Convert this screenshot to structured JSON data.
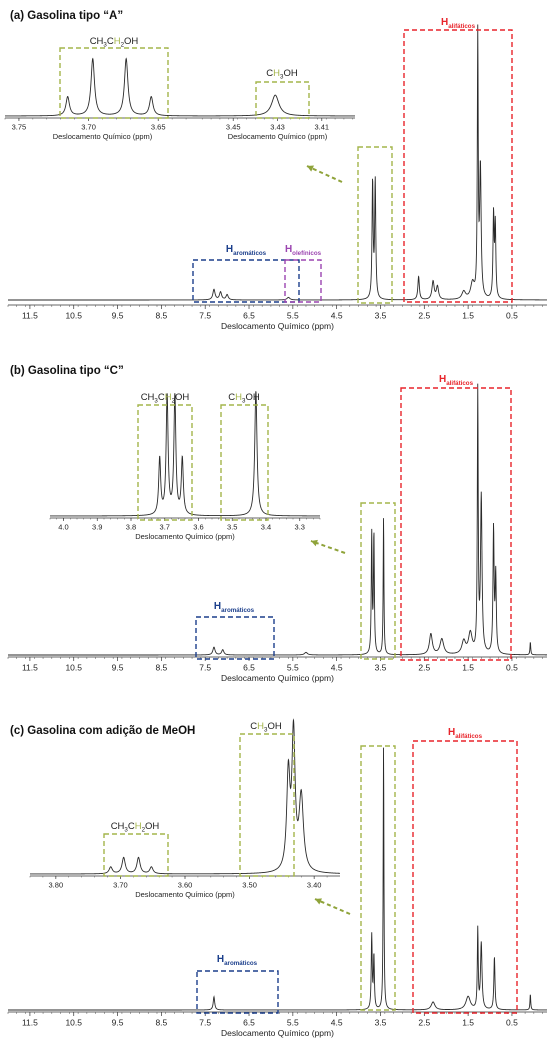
{
  "colors": {
    "spectrum": "#2a2a2a",
    "ethanol": "#a4b54b",
    "aliphatic": "#e8242b",
    "aromatic": "#1c3f8c",
    "olefinic": "#9b45b0",
    "arrow": "#8fa33a"
  },
  "chart_data": [
    {
      "type": "line",
      "title": "(a) Gasolina tipo “A”",
      "xlabel": "Deslocamento Químico (ppm)",
      "xlim": [
        12.0,
        -0.3
      ],
      "xticks": [
        11.5,
        10.5,
        9.5,
        8.5,
        7.5,
        6.5,
        5.5,
        4.5,
        3.5,
        2.5,
        1.5,
        0.5
      ],
      "xtick_labels": [
        "11.5",
        "10.5",
        "9.5",
        "8.5",
        "7.5",
        "6.5",
        "5.5",
        "4.5",
        "3.5",
        "2.5",
        "1.5",
        "0.5"
      ],
      "region_labels": {
        "aliphatic": {
          "main": "H",
          "sub": "alifáticos"
        },
        "aromatic": {
          "main": "H",
          "sub": "aromáticos"
        },
        "olefinic": {
          "main": "H",
          "sub": "olefínicos"
        }
      },
      "regions": [
        {
          "kind": "aliphatic",
          "x": [
            2.95,
            0.35
          ]
        },
        {
          "kind": "aromatic",
          "x": [
            7.95,
            6.2
          ]
        },
        {
          "kind": "olefinic",
          "x": [
            5.95,
            5.2
          ]
        },
        {
          "kind": "ethanol",
          "x": [
            3.9,
            3.1
          ]
        }
      ],
      "peaks": [
        {
          "x": 3.68,
          "h": 0.45,
          "w": 0.015
        },
        {
          "x": 3.62,
          "h": 0.45,
          "w": 0.015
        },
        {
          "x": 2.63,
          "h": 0.09,
          "w": 0.02
        },
        {
          "x": 2.3,
          "h": 0.07,
          "w": 0.03
        },
        {
          "x": 2.2,
          "h": 0.05,
          "w": 0.03
        },
        {
          "x": 1.6,
          "h": 0.03,
          "w": 0.05
        },
        {
          "x": 1.4,
          "h": 0.06,
          "w": 0.05
        },
        {
          "x": 1.28,
          "h": 1.0,
          "w": 0.012
        },
        {
          "x": 1.22,
          "h": 0.5,
          "w": 0.02
        },
        {
          "x": 0.92,
          "h": 0.32,
          "w": 0.015
        },
        {
          "x": 0.88,
          "h": 0.28,
          "w": 0.015
        },
        {
          "x": 7.3,
          "h": 0.04,
          "w": 0.03
        },
        {
          "x": 7.15,
          "h": 0.03,
          "w": 0.03
        },
        {
          "x": 7.0,
          "h": 0.02,
          "w": 0.03
        },
        {
          "x": 5.6,
          "h": 0.01,
          "w": 0.04
        }
      ],
      "insets": [
        {
          "label_parts": [
            "CH",
            "3",
            "C",
            "H",
            "2",
            "OH"
          ],
          "xlabel": "Deslocamento Químico (ppm)",
          "xlim": [
            3.76,
            3.62
          ],
          "xticks": [
            3.75,
            3.7,
            3.65
          ],
          "xtick_labels": [
            "3.75",
            "3.70",
            "3.65"
          ],
          "peaks": [
            {
              "x": 3.715,
              "h": 0.2,
              "w": 0.0015
            },
            {
              "x": 3.697,
              "h": 0.6,
              "w": 0.0015
            },
            {
              "x": 3.673,
              "h": 0.6,
              "w": 0.0015
            },
            {
              "x": 3.655,
              "h": 0.2,
              "w": 0.0015
            }
          ]
        },
        {
          "label_parts": [
            "C",
            "H",
            "3",
            "OH"
          ],
          "xlabel": "Deslocamento Químico (ppm)",
          "xlim": [
            3.465,
            3.395
          ],
          "xticks": [
            3.45,
            3.43,
            3.41
          ],
          "xtick_labels": [
            "3.45",
            "3.43",
            "3.41"
          ],
          "peaks": [
            {
              "x": 3.431,
              "h": 0.22,
              "w": 0.002
            }
          ]
        }
      ]
    },
    {
      "type": "line",
      "title": "(b) Gasolina tipo “C”",
      "xlabel": "Deslocamento Químico (ppm)",
      "xlim": [
        12.0,
        -0.3
      ],
      "xticks": [
        11.5,
        10.5,
        9.5,
        8.5,
        7.5,
        6.5,
        5.5,
        4.5,
        3.5,
        2.5,
        1.5,
        0.5
      ],
      "xtick_labels": [
        "11.5",
        "10.5",
        "9.5",
        "8.5",
        "7.5",
        "6.5",
        "5.5",
        "4.5",
        "3.5",
        "2.5",
        "1.5",
        "0.5"
      ],
      "region_labels": {
        "aliphatic": {
          "main": "H",
          "sub": "alifáticos"
        },
        "aromatic": {
          "main": "H",
          "sub": "aromáticos"
        }
      },
      "regions": [
        {
          "kind": "aliphatic",
          "x": [
            3.05,
            0.38
          ]
        },
        {
          "kind": "aromatic",
          "x": [
            7.95,
            6.05
          ]
        },
        {
          "kind": "ethanol",
          "x": [
            4.0,
            3.15
          ]
        }
      ],
      "peaks": [
        {
          "x": 3.7,
          "h": 0.46,
          "w": 0.012
        },
        {
          "x": 3.65,
          "h": 0.46,
          "w": 0.012
        },
        {
          "x": 3.43,
          "h": 0.53,
          "w": 0.01
        },
        {
          "x": 2.35,
          "h": 0.08,
          "w": 0.04
        },
        {
          "x": 2.1,
          "h": 0.06,
          "w": 0.05
        },
        {
          "x": 1.6,
          "h": 0.05,
          "w": 0.05
        },
        {
          "x": 1.45,
          "h": 0.08,
          "w": 0.05
        },
        {
          "x": 1.28,
          "h": 1.0,
          "w": 0.012
        },
        {
          "x": 1.2,
          "h": 0.6,
          "w": 0.02
        },
        {
          "x": 0.92,
          "h": 0.48,
          "w": 0.015
        },
        {
          "x": 0.87,
          "h": 0.3,
          "w": 0.015
        },
        {
          "x": 7.3,
          "h": 0.03,
          "w": 0.03
        },
        {
          "x": 7.1,
          "h": 0.02,
          "w": 0.03
        },
        {
          "x": 5.2,
          "h": 0.01,
          "w": 0.04
        },
        {
          "x": 0.08,
          "h": 0.05,
          "w": 0.01
        }
      ],
      "insets": [
        {
          "label_parts": [
            "CH",
            "3",
            "C",
            "H",
            "2",
            "OH"
          ],
          "label_parts_2": [
            "C",
            "H",
            "3",
            "OH"
          ],
          "xlabel": "Deslocamento Químico (ppm)",
          "xlim": [
            4.04,
            3.24
          ],
          "xticks": [
            4.0,
            3.9,
            3.8,
            3.7,
            3.6,
            3.5,
            3.4,
            3.3
          ],
          "xtick_labels": [
            "4.0",
            "3.9",
            "3.8",
            "3.7",
            "3.6",
            "3.5",
            "3.4",
            "3.3"
          ],
          "peaks": [
            {
              "x": 3.715,
              "h": 0.45,
              "w": 0.0035
            },
            {
              "x": 3.693,
              "h": 0.95,
              "w": 0.0035
            },
            {
              "x": 3.67,
              "h": 0.95,
              "w": 0.0035
            },
            {
              "x": 3.648,
              "h": 0.45,
              "w": 0.0035
            },
            {
              "x": 3.43,
              "h": 1.0,
              "w": 0.004
            }
          ]
        }
      ]
    },
    {
      "type": "line",
      "title": "(c) Gasolina com adição de MeOH",
      "xlabel": "Deslocamento Químico (ppm)",
      "xlim": [
        12.0,
        -0.3
      ],
      "xticks": [
        11.5,
        10.5,
        9.5,
        8.5,
        7.5,
        6.5,
        5.5,
        4.5,
        3.5,
        2.5,
        1.5,
        0.5
      ],
      "xtick_labels": [
        "11.5",
        "10.5",
        "9.5",
        "8.5",
        "7.5",
        "6.5",
        "5.5",
        "4.5",
        "3.5",
        "2.5",
        "1.5",
        "0.5"
      ],
      "region_labels": {
        "aliphatic": {
          "main": "H",
          "sub": "alifáticos"
        },
        "aromatic": {
          "main": "H",
          "sub": "aromáticos"
        }
      },
      "regions": [
        {
          "kind": "aliphatic",
          "x": [
            2.95,
            0.28
          ]
        },
        {
          "kind": "aromatic",
          "x": [
            7.95,
            6.2
          ]
        },
        {
          "kind": "ethanol",
          "x": [
            3.92,
            3.15
          ]
        }
      ],
      "peaks": [
        {
          "x": 3.7,
          "h": 0.28,
          "w": 0.013
        },
        {
          "x": 3.65,
          "h": 0.2,
          "w": 0.013
        },
        {
          "x": 3.43,
          "h": 1.0,
          "w": 0.01
        },
        {
          "x": 2.3,
          "h": 0.03,
          "w": 0.05
        },
        {
          "x": 1.5,
          "h": 0.05,
          "w": 0.06
        },
        {
          "x": 1.28,
          "h": 0.3,
          "w": 0.012
        },
        {
          "x": 1.2,
          "h": 0.25,
          "w": 0.02
        },
        {
          "x": 0.9,
          "h": 0.2,
          "w": 0.015
        },
        {
          "x": 7.3,
          "h": 0.05,
          "w": 0.02
        },
        {
          "x": 0.08,
          "h": 0.06,
          "w": 0.01
        }
      ],
      "insets": [
        {
          "label_parts": [
            "CH",
            "3",
            "C",
            "H",
            "2",
            "OH"
          ],
          "label_parts_2": [
            "C",
            "H",
            "3",
            "OH"
          ],
          "xlabel": "Deslocamento Químico (ppm)",
          "xlim": [
            3.84,
            3.36
          ],
          "xticks": [
            3.8,
            3.7,
            3.6,
            3.5,
            3.4
          ],
          "xtick_labels": [
            "3.80",
            "3.70",
            "3.60",
            "3.50",
            "3.40"
          ],
          "peaks": [
            {
              "x": 3.715,
              "h": 0.05,
              "w": 0.003
            },
            {
              "x": 3.695,
              "h": 0.12,
              "w": 0.003
            },
            {
              "x": 3.672,
              "h": 0.12,
              "w": 0.003
            },
            {
              "x": 3.652,
              "h": 0.05,
              "w": 0.003
            },
            {
              "x": 3.44,
              "h": 0.7,
              "w": 0.003
            },
            {
              "x": 3.432,
              "h": 1.0,
              "w": 0.003
            },
            {
              "x": 3.42,
              "h": 0.55,
              "w": 0.004
            }
          ]
        }
      ]
    }
  ]
}
